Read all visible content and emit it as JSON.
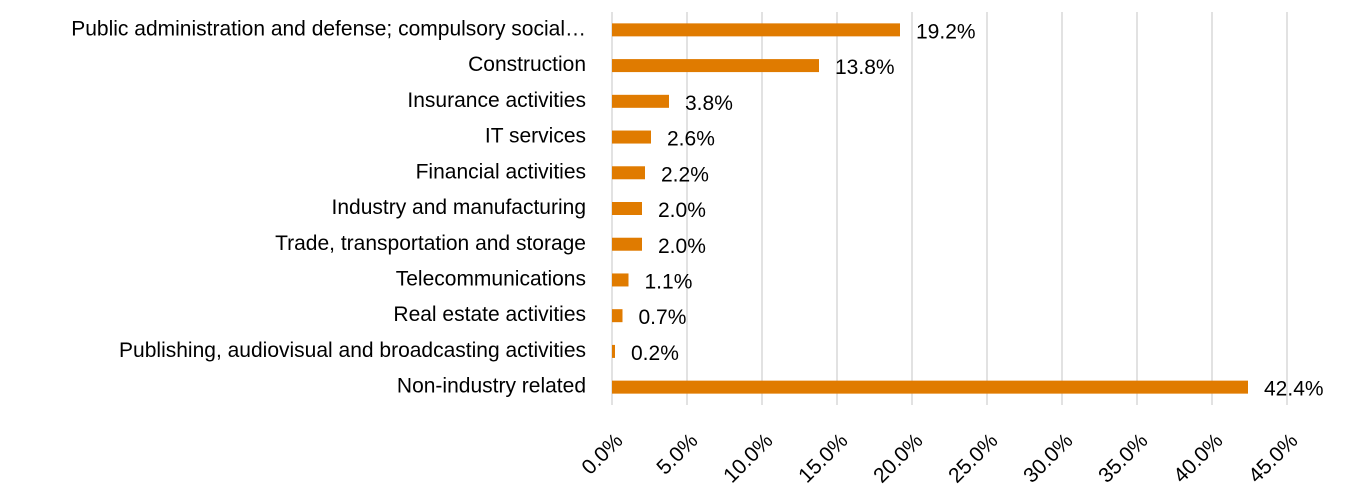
{
  "chart_data": {
    "type": "bar",
    "orientation": "horizontal",
    "categories": [
      "Public administration and defense; compulsory social…",
      "Construction",
      "Insurance activities",
      "IT services",
      "Financial activities",
      "Industry and manufacturing",
      "Trade, transportation and storage",
      "Telecommunications",
      "Real estate activities",
      "Publishing, audiovisual and broadcasting activities",
      "Non-industry related"
    ],
    "values": [
      19.2,
      13.8,
      3.8,
      2.6,
      2.2,
      2.0,
      2.0,
      1.1,
      0.7,
      0.2,
      42.4
    ],
    "value_labels": [
      "19.2%",
      "13.8%",
      "3.8%",
      "2.6%",
      "2.2%",
      "2.0%",
      "2.0%",
      "1.1%",
      "0.7%",
      "0.2%",
      "42.4%"
    ],
    "color": "#e07b00",
    "xlim": [
      0,
      45
    ],
    "xticks": [
      {
        "value": 0,
        "label": "0.0%"
      },
      {
        "value": 5,
        "label": "5.0%"
      },
      {
        "value": 10,
        "label": "10.0%"
      },
      {
        "value": 15,
        "label": "15.0%"
      },
      {
        "value": 20,
        "label": "20.0%"
      },
      {
        "value": 25,
        "label": "25.0%"
      },
      {
        "value": 30,
        "label": "30.0%"
      },
      {
        "value": 35,
        "label": "35.0%"
      },
      {
        "value": 40,
        "label": "40.0%"
      },
      {
        "value": 45,
        "label": "45.0%"
      }
    ],
    "grid": true
  }
}
